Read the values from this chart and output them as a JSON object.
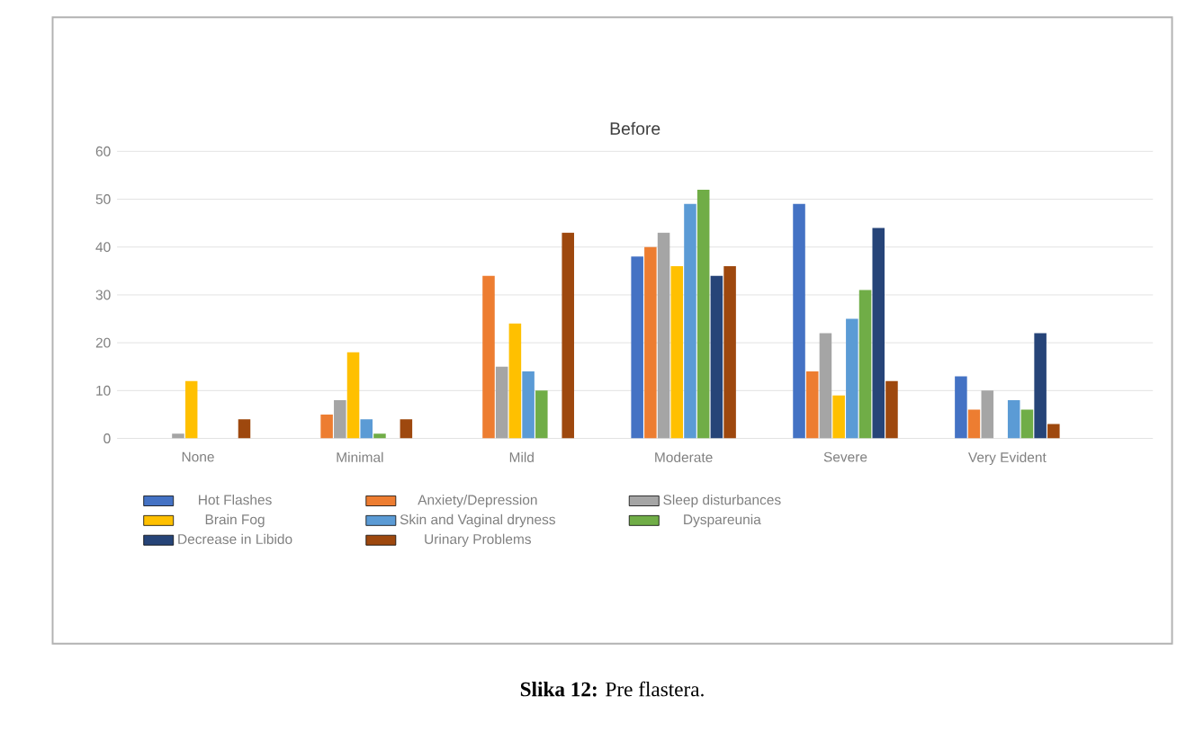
{
  "chart_data": {
    "type": "bar",
    "title": "Before",
    "categories": [
      "None",
      "Minimal",
      "Mild",
      "Moderate",
      "Severe",
      "Very Evident"
    ],
    "series": [
      {
        "name": "Hot Flashes",
        "color": "#4472c4",
        "values": [
          0,
          0,
          0,
          38,
          49,
          13
        ]
      },
      {
        "name": "Anxiety/Depression",
        "color": "#ed7d31",
        "values": [
          0,
          5,
          34,
          40,
          14,
          6
        ]
      },
      {
        "name": "Sleep disturbances",
        "color": "#a5a5a5",
        "values": [
          1,
          8,
          15,
          43,
          22,
          10
        ]
      },
      {
        "name": "Brain Fog",
        "color": "#ffc000",
        "values": [
          12,
          18,
          24,
          36,
          9,
          0
        ]
      },
      {
        "name": "Skin and Vaginal dryness",
        "color": "#5b9bd5",
        "values": [
          0,
          4,
          14,
          49,
          25,
          8
        ]
      },
      {
        "name": "Dyspareunia",
        "color": "#70ad47",
        "values": [
          0,
          1,
          10,
          52,
          31,
          6
        ]
      },
      {
        "name": "Decrease in Libido",
        "color": "#264478",
        "values": [
          0,
          0,
          0,
          34,
          44,
          22
        ]
      },
      {
        "name": "Urinary Problems",
        "color": "#9e480e",
        "values": [
          4,
          4,
          43,
          36,
          12,
          3
        ]
      }
    ],
    "ylim": [
      0,
      60
    ],
    "yticks": [
      0,
      10,
      20,
      30,
      40,
      50,
      60
    ],
    "grid": "y",
    "legend": "bottom",
    "annotations": [
      "**Slika 12:** Pre flastera."
    ]
  }
}
